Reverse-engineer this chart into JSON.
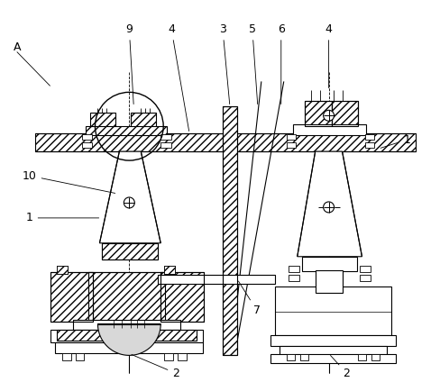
{
  "background_color": "#ffffff",
  "fig_width": 4.88,
  "fig_height": 4.24,
  "dpi": 100,
  "lw": 0.8
}
